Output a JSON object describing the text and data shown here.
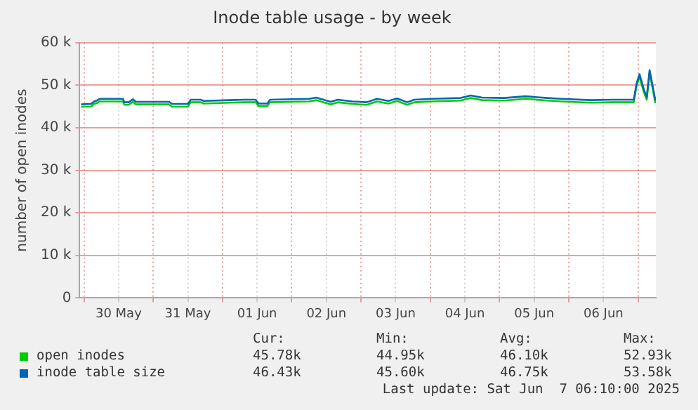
{
  "chart_data": {
    "type": "line",
    "title": "Inode table usage - by week",
    "ylabel": "number of open inodes",
    "x": [
      "2025-05-29T23:00",
      "2025-05-30T02:30",
      "2025-05-30T03:30",
      "2025-05-30T04:30",
      "2025-05-30T05:30",
      "2025-05-30T09:30",
      "2025-05-30T13:30",
      "2025-05-30T14:00",
      "2025-05-30T15:30",
      "2025-05-30T17:00",
      "2025-05-30T18:00",
      "2025-05-31T05:30",
      "2025-05-31T06:30",
      "2025-05-31T12:00",
      "2025-05-31T13:00",
      "2025-05-31T16:30",
      "2025-05-31T17:30",
      "2025-06-01T02:30",
      "2025-06-01T07:30",
      "2025-06-01T11:30",
      "2025-06-01T12:30",
      "2025-06-01T15:30",
      "2025-06-01T16:30",
      "2025-06-02T06:00",
      "2025-06-02T08:30",
      "2025-06-02T11:00",
      "2025-06-02T13:30",
      "2025-06-02T16:00",
      "2025-06-02T21:00",
      "2025-06-03T02:00",
      "2025-06-03T05:30",
      "2025-06-03T09:30",
      "2025-06-03T12:30",
      "2025-06-03T16:00",
      "2025-06-03T18:30",
      "2025-06-04T00:30",
      "2025-06-04T10:30",
      "2025-06-04T14:00",
      "2025-06-04T18:00",
      "2025-06-05T01:30",
      "2025-06-05T09:00",
      "2025-06-05T16:30",
      "2025-06-05T21:30",
      "2025-06-06T07:30",
      "2025-06-06T15:00",
      "2025-06-06T22:30",
      "2025-06-06T23:30",
      "2025-06-07T00:30",
      "2025-06-07T02:00",
      "2025-06-07T03:00",
      "2025-06-07T04:00",
      "2025-06-07T05:00",
      "2025-06-07T06:00"
    ],
    "series": [
      {
        "name": "open inodes",
        "color": "#00cc00",
        "values": [
          44950,
          45000,
          45600,
          45800,
          46200,
          46200,
          46200,
          45400,
          45400,
          46100,
          45500,
          45500,
          44950,
          44950,
          46000,
          46000,
          45700,
          45900,
          46000,
          46000,
          45100,
          45100,
          46000,
          46200,
          46500,
          46000,
          45500,
          46000,
          45600,
          45400,
          46200,
          45700,
          46300,
          45400,
          46000,
          46200,
          46400,
          47000,
          46500,
          46400,
          46800,
          46400,
          46200,
          45900,
          46000,
          46000,
          49900,
          52000,
          48400,
          46600,
          52930,
          49400,
          45780
        ]
      },
      {
        "name": "inode table size",
        "color": "#0066b3",
        "values": [
          45500,
          45600,
          46200,
          46400,
          46800,
          46800,
          46800,
          46000,
          46000,
          46700,
          46100,
          46100,
          45600,
          45600,
          46600,
          46600,
          46300,
          46500,
          46600,
          46600,
          45700,
          45700,
          46600,
          46800,
          47100,
          46600,
          46100,
          46600,
          46200,
          46000,
          46800,
          46300,
          46900,
          46000,
          46600,
          46800,
          47000,
          47600,
          47100,
          47000,
          47400,
          47000,
          46800,
          46500,
          46600,
          46600,
          50500,
          52600,
          49000,
          47200,
          53580,
          50000,
          46430
        ]
      }
    ],
    "xlim": [
      "2025-05-29T22:30",
      "2025-06-07T06:10"
    ],
    "xticks": [
      {
        "value": "2025-05-30T00:00",
        "label": null
      },
      {
        "value": "2025-05-30T12:00",
        "label": "30 May"
      },
      {
        "value": "2025-05-31T00:00",
        "label": null
      },
      {
        "value": "2025-05-31T12:00",
        "label": "31 May"
      },
      {
        "value": "2025-06-01T00:00",
        "label": null
      },
      {
        "value": "2025-06-01T12:00",
        "label": "01 Jun"
      },
      {
        "value": "2025-06-02T00:00",
        "label": null
      },
      {
        "value": "2025-06-02T12:00",
        "label": "02 Jun"
      },
      {
        "value": "2025-06-03T00:00",
        "label": null
      },
      {
        "value": "2025-06-03T12:00",
        "label": "03 Jun"
      },
      {
        "value": "2025-06-04T00:00",
        "label": null
      },
      {
        "value": "2025-06-04T12:00",
        "label": "04 Jun"
      },
      {
        "value": "2025-06-05T00:00",
        "label": null
      },
      {
        "value": "2025-06-05T12:00",
        "label": "05 Jun"
      },
      {
        "value": "2025-06-06T00:00",
        "label": null
      },
      {
        "value": "2025-06-06T12:00",
        "label": "06 Jun"
      },
      {
        "value": "2025-06-07T00:00",
        "label": null
      }
    ],
    "ylim": [
      0,
      60000
    ],
    "yticks": [
      0,
      {
        "value": 10000,
        "label": "10 k"
      },
      {
        "value": 20000,
        "label": "20 k"
      },
      {
        "value": 30000,
        "label": "30 k"
      },
      {
        "value": 40000,
        "label": "40 k"
      },
      {
        "value": 50000,
        "label": "50 k"
      },
      {
        "value": 60000,
        "label": "60 k"
      }
    ],
    "grid": true,
    "legend": "bottom",
    "marker": "none",
    "line_style": "solid",
    "annotations": [
      "Cur:",
      "Min:",
      "Avg:",
      "Max:",
      "45.78k",
      "44.95k",
      "46.10k",
      "52.93k",
      "46.43k",
      "45.60k",
      "46.75k",
      "53.58k",
      "Last update: Sat Jun  7 06:10:00 2025"
    ]
  }
}
